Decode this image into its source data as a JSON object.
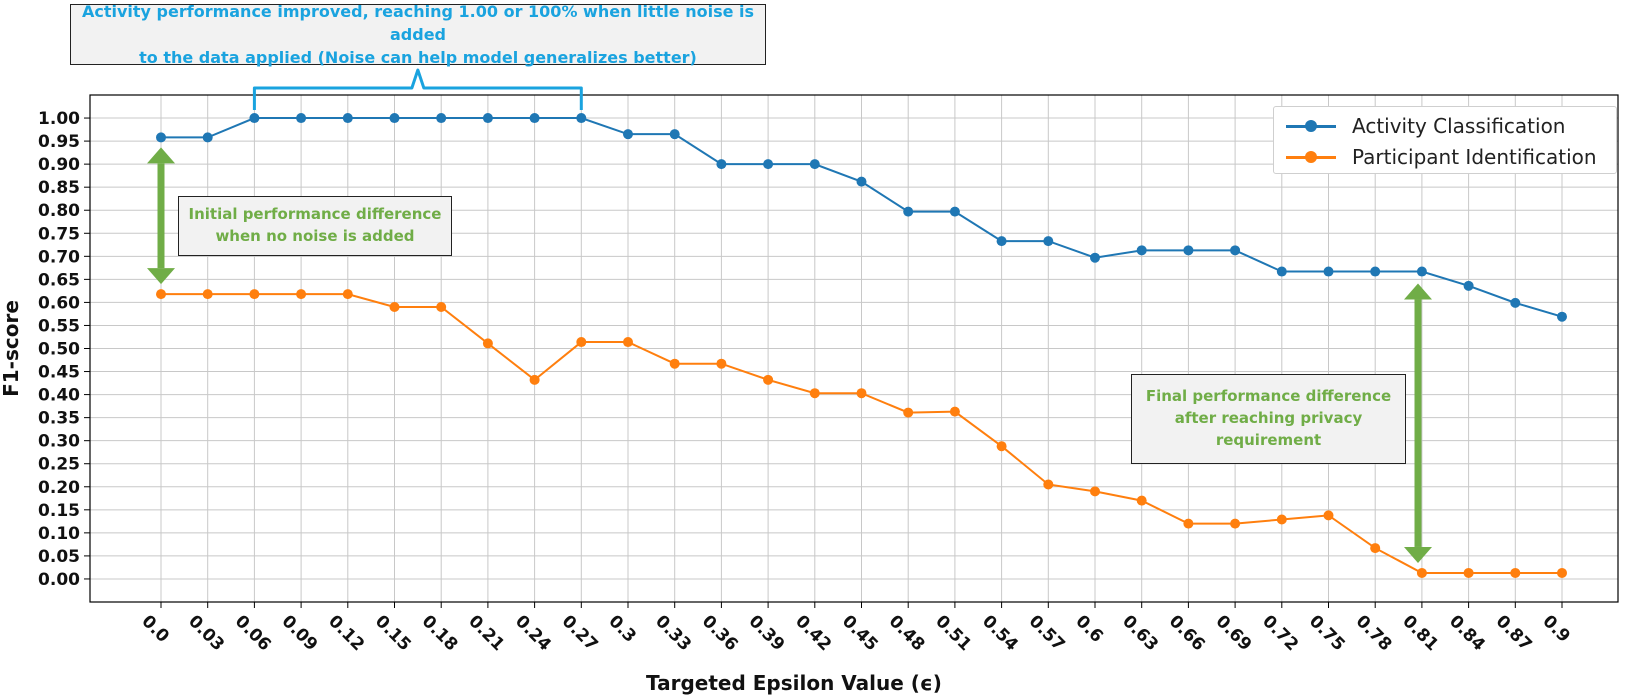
{
  "chart_data": {
    "type": "line",
    "xlabel": "Targeted Epsilon Value (ϵ)",
    "ylabel": "F1-score",
    "x": [
      "0.0",
      "0.03",
      "0.06",
      "0.09",
      "0.12",
      "0.15",
      "0.18",
      "0.21",
      "0.24",
      "0.27",
      "0.3",
      "0.33",
      "0.36",
      "0.39",
      "0.42",
      "0.45",
      "0.48",
      "0.51",
      "0.54",
      "0.57",
      "0.6",
      "0.63",
      "0.66",
      "0.69",
      "0.72",
      "0.75",
      "0.78",
      "0.81",
      "0.84",
      "0.87",
      "0.9"
    ],
    "ylim": [
      -0.05,
      1.05
    ],
    "yticks": [
      "0.00",
      "0.05",
      "0.10",
      "0.15",
      "0.20",
      "0.25",
      "0.30",
      "0.35",
      "0.40",
      "0.45",
      "0.50",
      "0.55",
      "0.60",
      "0.65",
      "0.70",
      "0.75",
      "0.80",
      "0.85",
      "0.90",
      "0.95",
      "1.00"
    ],
    "grid": true,
    "legend_position": "top-right",
    "series": [
      {
        "name": "Activity Classification",
        "color": "#1f77b4",
        "values": [
          0.958,
          0.958,
          1.0,
          1.0,
          1.0,
          1.0,
          1.0,
          1.0,
          1.0,
          1.0,
          0.965,
          0.965,
          0.9,
          0.9,
          0.9,
          0.862,
          0.797,
          0.797,
          0.733,
          0.733,
          0.697,
          0.713,
          0.713,
          0.713,
          0.667,
          0.667,
          0.667,
          0.667,
          0.636,
          0.599,
          0.569
        ]
      },
      {
        "name": "Participant Identification",
        "color": "#ff7f0e",
        "values": [
          0.618,
          0.618,
          0.618,
          0.618,
          0.618,
          0.59,
          0.59,
          0.511,
          0.432,
          0.514,
          0.514,
          0.467,
          0.467,
          0.432,
          0.403,
          0.403,
          0.361,
          0.363,
          0.288,
          0.205,
          0.19,
          0.17,
          0.12,
          0.12,
          0.129,
          0.138,
          0.067,
          0.013,
          0.013,
          0.013,
          0.013
        ]
      }
    ],
    "annotations": {
      "top_lines": [
        "Activity performance improved, reaching 1.00 or 100% when little noise is added",
        "to the data applied (Noise can help model generalizes better)"
      ],
      "initial_lines": [
        "Initial performance difference",
        "when no noise is added"
      ],
      "final_lines": [
        "Final performance difference",
        "after reaching privacy",
        "requirement"
      ],
      "brace_color": "#1aa3df",
      "arrow_color": "#70ad47"
    }
  }
}
